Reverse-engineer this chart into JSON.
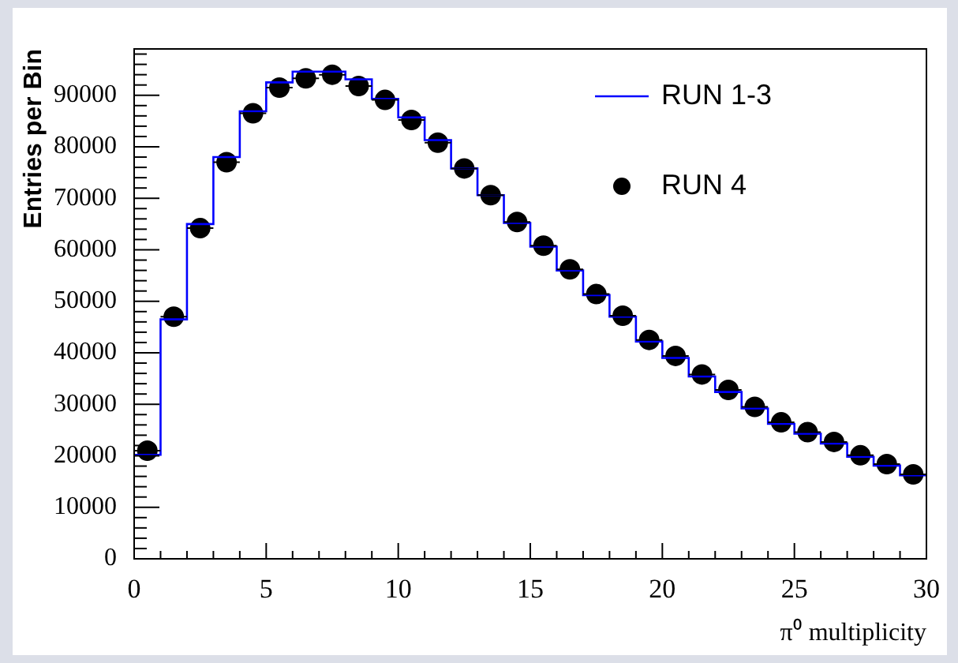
{
  "chart_data": {
    "type": "step",
    "xlabel": "π⁰ multiplicity",
    "ylabel": "Entries per Bin",
    "legend": "top right",
    "x": [
      0.5,
      1.5,
      2.5,
      3.5,
      4.5,
      5.5,
      6.5,
      7.5,
      8.5,
      9.5,
      10.5,
      11.5,
      12.5,
      13.5,
      14.5,
      15.5,
      16.5,
      17.5,
      18.5,
      19.5,
      20.5,
      21.5,
      22.5,
      23.5,
      24.5,
      25.5,
      26.5,
      27.5,
      28.5,
      29.5
    ],
    "xlim": [
      0,
      30
    ],
    "ylim": [
      0,
      99000
    ],
    "xticks": [
      0,
      {
        "value": 1,
        "label": null
      },
      {
        "value": 2,
        "label": null
      },
      {
        "value": 3,
        "label": null
      },
      {
        "value": 4,
        "label": null
      },
      5,
      {
        "value": 6,
        "label": null
      },
      {
        "value": 7,
        "label": null
      },
      {
        "value": 8,
        "label": null
      },
      {
        "value": 9,
        "label": null
      },
      10,
      {
        "value": 11,
        "label": null
      },
      {
        "value": 12,
        "label": null
      },
      {
        "value": 13,
        "label": null
      },
      {
        "value": 14,
        "label": null
      },
      15,
      {
        "value": 16,
        "label": null
      },
      {
        "value": 17,
        "label": null
      },
      {
        "value": 18,
        "label": null
      },
      {
        "value": 19,
        "label": null
      },
      20,
      {
        "value": 21,
        "label": null
      },
      {
        "value": 22,
        "label": null
      },
      {
        "value": 23,
        "label": null
      },
      {
        "value": 24,
        "label": null
      },
      25,
      {
        "value": 26,
        "label": null
      },
      {
        "value": 27,
        "label": null
      },
      {
        "value": 28,
        "label": null
      },
      {
        "value": 29,
        "label": null
      },
      30
    ],
    "yticks": [
      0,
      {
        "value": 2000,
        "label": null
      },
      {
        "value": 4000,
        "label": null
      },
      {
        "value": 6000,
        "label": null
      },
      {
        "value": 8000,
        "label": null
      },
      10000,
      {
        "value": 12000,
        "label": null
      },
      {
        "value": 14000,
        "label": null
      },
      {
        "value": 16000,
        "label": null
      },
      {
        "value": 18000,
        "label": null
      },
      20000,
      {
        "value": 22000,
        "label": null
      },
      {
        "value": 24000,
        "label": null
      },
      {
        "value": 26000,
        "label": null
      },
      {
        "value": 28000,
        "label": null
      },
      30000,
      {
        "value": 32000,
        "label": null
      },
      {
        "value": 34000,
        "label": null
      },
      {
        "value": 36000,
        "label": null
      },
      {
        "value": 38000,
        "label": null
      },
      40000,
      {
        "value": 42000,
        "label": null
      },
      {
        "value": 44000,
        "label": null
      },
      {
        "value": 46000,
        "label": null
      },
      {
        "value": 48000,
        "label": null
      },
      50000,
      {
        "value": 52000,
        "label": null
      },
      {
        "value": 54000,
        "label": null
      },
      {
        "value": 56000,
        "label": null
      },
      {
        "value": 58000,
        "label": null
      },
      60000,
      {
        "value": 62000,
        "label": null
      },
      {
        "value": 64000,
        "label": null
      },
      {
        "value": 66000,
        "label": null
      },
      {
        "value": 68000,
        "label": null
      },
      70000,
      {
        "value": 72000,
        "label": null
      },
      {
        "value": 74000,
        "label": null
      },
      {
        "value": 76000,
        "label": null
      },
      {
        "value": 78000,
        "label": null
      },
      80000,
      {
        "value": 82000,
        "label": null
      },
      {
        "value": 84000,
        "label": null
      },
      {
        "value": 86000,
        "label": null
      },
      {
        "value": 88000,
        "label": null
      },
      90000,
      {
        "value": 92000,
        "label": null
      },
      {
        "value": 94000,
        "label": null
      },
      {
        "value": 96000,
        "label": null
      },
      {
        "value": 98000,
        "label": null
      }
    ],
    "series": [
      {
        "name": "RUN 1-3",
        "color": "#0000ff",
        "marker": "none",
        "x": [
          0,
          0.5,
          1.5,
          2.5,
          3.5,
          4.5,
          5.5,
          6.5,
          7.5,
          8.5,
          9.5,
          10.5,
          11.5,
          12.5,
          13.5,
          14.5,
          15.5,
          16.5,
          17.5,
          18.5,
          19.5,
          20.5,
          21.5,
          22.5,
          23.5,
          24.5,
          25.5,
          26.5,
          27.5,
          28.5,
          29.5,
          30
        ],
        "values": [
          20200,
          20200,
          46500,
          65000,
          78000,
          86900,
          92500,
          94600,
          94600,
          93100,
          89300,
          85700,
          81300,
          75800,
          70600,
          65200,
          60600,
          56000,
          51200,
          47000,
          42200,
          39000,
          35400,
          32400,
          29200,
          26200,
          24300,
          22400,
          19800,
          18100,
          16200,
          16200
        ]
      },
      {
        "name": "RUN 4",
        "type": "scatter",
        "color": "#000000",
        "marker": "circle",
        "values": [
          21000,
          47000,
          64200,
          77000,
          86500,
          91500,
          93300,
          94000,
          91800,
          89100,
          85200,
          80800,
          75800,
          70600,
          65400,
          60800,
          56200,
          51400,
          47200,
          42500,
          39400,
          35800,
          32800,
          29500,
          26500,
          24600,
          22700,
          20100,
          18400,
          16400
        ],
        "xerrors": [
          0.5,
          0.5,
          0.5,
          0.5,
          0.5,
          0.5,
          0.5,
          0.5,
          0.5,
          0.5,
          0.5,
          0.5,
          0.5,
          0.5,
          0.5,
          0.5,
          0.5,
          0.5,
          0.5,
          0.5,
          0.5,
          0.5,
          0.5,
          0.5,
          0.5,
          0.5,
          0.5,
          0.5,
          0.5,
          0.5
        ]
      }
    ]
  }
}
